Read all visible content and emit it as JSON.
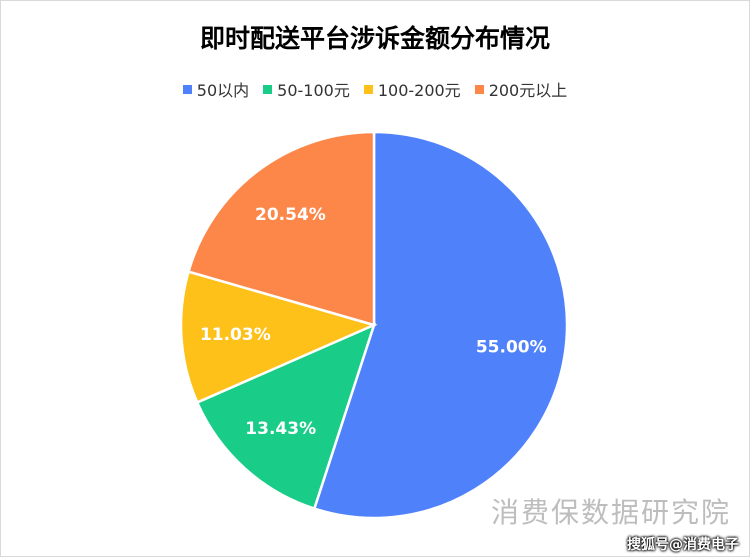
{
  "chart_data": {
    "type": "pie",
    "title": "即时配送平台涉诉金额分布情况",
    "legend_position": "top",
    "categories": [
      "50以内",
      "50-100元",
      "100-200元",
      "200元以上"
    ],
    "values": [
      55.0,
      13.43,
      11.03,
      20.54
    ],
    "labels": [
      "55.00%",
      "13.43%",
      "11.03%",
      "20.54%"
    ],
    "colors": [
      "#4f81fb",
      "#19cc88",
      "#fec11a",
      "#fd8649"
    ]
  },
  "watermark": "消费保数据研究院",
  "credit": "搜狐号@消费电子"
}
